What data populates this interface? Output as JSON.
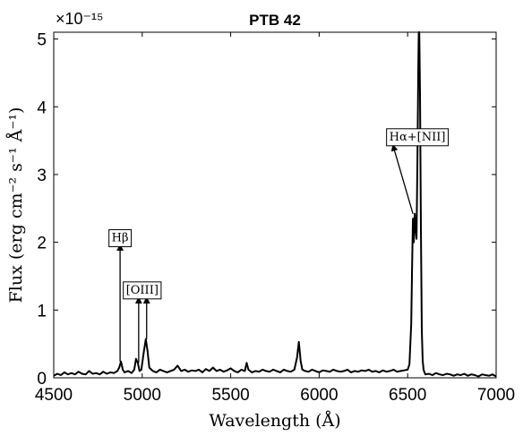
{
  "chart_data": {
    "type": "line",
    "title": "PTB 42",
    "xlabel": "Wavelength (Å)",
    "ylabel": "Flux (erg cm⁻² s⁻¹ Å⁻¹)",
    "y_exponent": "×10⁻¹⁵",
    "xlim": [
      4500,
      7000
    ],
    "ylim": [
      0,
      5.1
    ],
    "x_ticks": [
      4500,
      5000,
      5500,
      6000,
      6500,
      7000
    ],
    "y_ticks": [
      0,
      1,
      2,
      3,
      4,
      5
    ],
    "grid": false,
    "series": [
      {
        "color": "#000000",
        "x": [
          4500,
          4520,
          4540,
          4560,
          4580,
          4600,
          4620,
          4640,
          4660,
          4680,
          4700,
          4720,
          4740,
          4760,
          4780,
          4800,
          4820,
          4840,
          4860,
          4870,
          4880,
          4890,
          4900,
          4920,
          4940,
          4955,
          4965,
          4975,
          4985,
          4995,
          5010,
          5020,
          5030,
          5040,
          5060,
          5080,
          5100,
          5120,
          5140,
          5160,
          5180,
          5200,
          5220,
          5240,
          5260,
          5280,
          5300,
          5320,
          5340,
          5360,
          5380,
          5400,
          5420,
          5440,
          5460,
          5480,
          5500,
          5520,
          5540,
          5560,
          5580,
          5590,
          5600,
          5610,
          5620,
          5640,
          5660,
          5680,
          5700,
          5720,
          5740,
          5760,
          5780,
          5800,
          5820,
          5840,
          5860,
          5875,
          5885,
          5895,
          5905,
          5920,
          5940,
          5960,
          5980,
          6000,
          6020,
          6040,
          6060,
          6080,
          6100,
          6120,
          6140,
          6160,
          6180,
          6200,
          6220,
          6240,
          6260,
          6280,
          6300,
          6320,
          6340,
          6360,
          6380,
          6400,
          6420,
          6440,
          6460,
          6480,
          6500,
          6510,
          6520,
          6525,
          6530,
          6535,
          6540,
          6545,
          6550,
          6555,
          6560,
          6563,
          6566,
          6570,
          6575,
          6580,
          6585,
          6590,
          6595,
          6600,
          6620,
          6640,
          6660,
          6680,
          6700,
          6720,
          6740,
          6760,
          6780,
          6800,
          6820,
          6840,
          6860,
          6880,
          6900,
          6920,
          6940,
          6960,
          6980,
          7000
        ],
        "y": [
          0.03,
          0.06,
          0.04,
          0.08,
          0.05,
          0.07,
          0.05,
          0.09,
          0.06,
          0.05,
          0.1,
          0.06,
          0.07,
          0.05,
          0.09,
          0.06,
          0.08,
          0.07,
          0.1,
          0.15,
          0.24,
          0.12,
          0.08,
          0.1,
          0.07,
          0.12,
          0.28,
          0.22,
          0.1,
          0.12,
          0.4,
          0.57,
          0.4,
          0.15,
          0.1,
          0.08,
          0.12,
          0.1,
          0.08,
          0.1,
          0.12,
          0.18,
          0.1,
          0.12,
          0.09,
          0.11,
          0.1,
          0.12,
          0.08,
          0.13,
          0.1,
          0.15,
          0.1,
          0.12,
          0.09,
          0.11,
          0.14,
          0.1,
          0.08,
          0.12,
          0.1,
          0.22,
          0.12,
          0.1,
          0.08,
          0.1,
          0.09,
          0.12,
          0.1,
          0.09,
          0.12,
          0.1,
          0.08,
          0.12,
          0.1,
          0.09,
          0.12,
          0.3,
          0.53,
          0.25,
          0.12,
          0.1,
          0.09,
          0.12,
          0.1,
          0.08,
          0.11,
          0.1,
          0.09,
          0.12,
          0.1,
          0.09,
          0.1,
          0.12,
          0.08,
          0.1,
          0.09,
          0.11,
          0.1,
          0.12,
          0.09,
          0.1,
          0.08,
          0.11,
          0.09,
          0.1,
          0.12,
          0.09,
          0.1,
          0.11,
          0.12,
          0.2,
          0.8,
          1.6,
          2.35,
          2.0,
          2.42,
          2.2,
          2.05,
          3.2,
          4.6,
          5.3,
          5.6,
          4.2,
          2.2,
          0.7,
          0.25,
          0.12,
          0.08,
          0.05,
          0.06,
          0.04,
          0.07,
          0.05,
          0.04,
          0.06,
          0.05,
          0.03,
          0.05,
          0.04,
          0.06,
          0.03,
          0.05,
          0.04,
          0.02,
          0.05,
          0.04,
          0.03,
          0.05,
          0.02
        ]
      }
    ],
    "annotations": [
      {
        "label": "Hβ",
        "text_x": 4875,
        "text_y": 2.08,
        "arrow_from": [
          4875,
          0.24
        ],
        "arrow_to": [
          4875,
          1.98
        ]
      },
      {
        "label": "[OIII]",
        "text_x": 5000,
        "text_y": 1.31,
        "arrows": [
          [
            [
              4980,
              0.22
            ],
            [
              4980,
              1.2
            ]
          ],
          [
            [
              5025,
              0.57
            ],
            [
              5025,
              1.2
            ]
          ]
        ]
      },
      {
        "label": "Hα+[NII]",
        "text_x": 6555,
        "text_y": 3.57,
        "arrow_from": [
          6530,
          2.42
        ],
        "arrow_to": [
          6415,
          3.45
        ]
      }
    ]
  }
}
